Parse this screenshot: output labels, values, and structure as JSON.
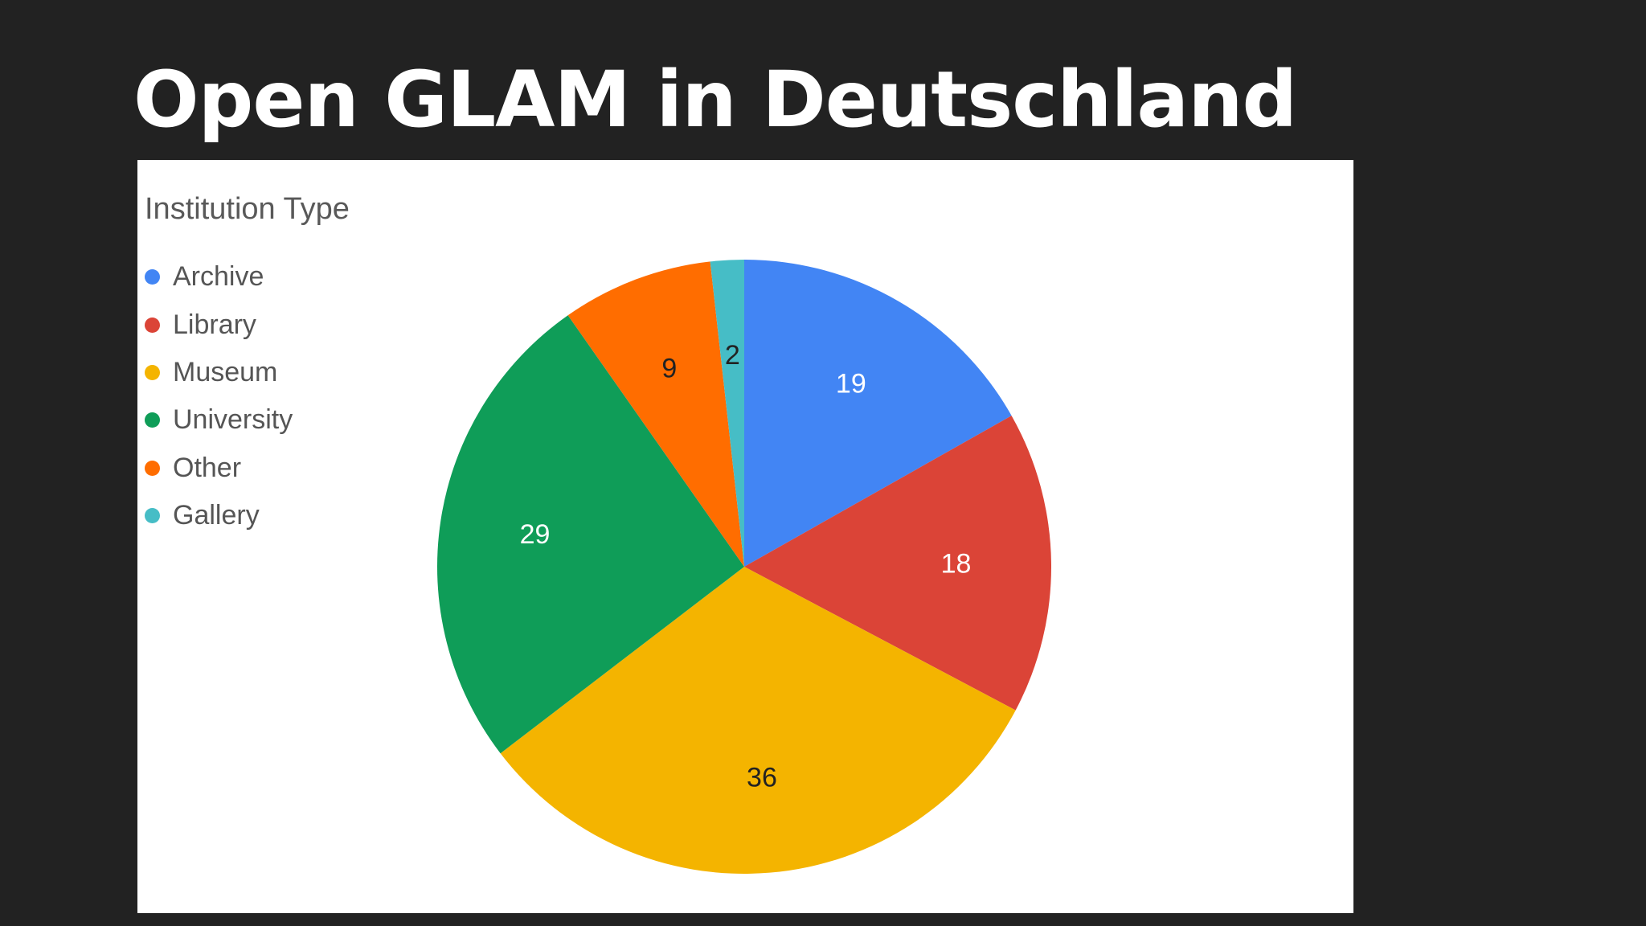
{
  "slide": {
    "title": "Open GLAM in Deutschland"
  },
  "chart_data": {
    "type": "pie",
    "title": "",
    "legend_title": "Institution Type",
    "legend_position": "top-left",
    "categories": [
      "Archive",
      "Library",
      "Museum",
      "University",
      "Other",
      "Gallery"
    ],
    "values": [
      19,
      18,
      36,
      29,
      9,
      2
    ],
    "colors": [
      "#4285f4",
      "#db4437",
      "#f4b400",
      "#0f9d58",
      "#ff6d00",
      "#46bdc6"
    ],
    "label_colors": [
      "#ffffff",
      "#ffffff",
      "#222222",
      "#ffffff",
      "#222222",
      "#222222"
    ],
    "start_angle_deg": 0,
    "direction": "clockwise"
  }
}
